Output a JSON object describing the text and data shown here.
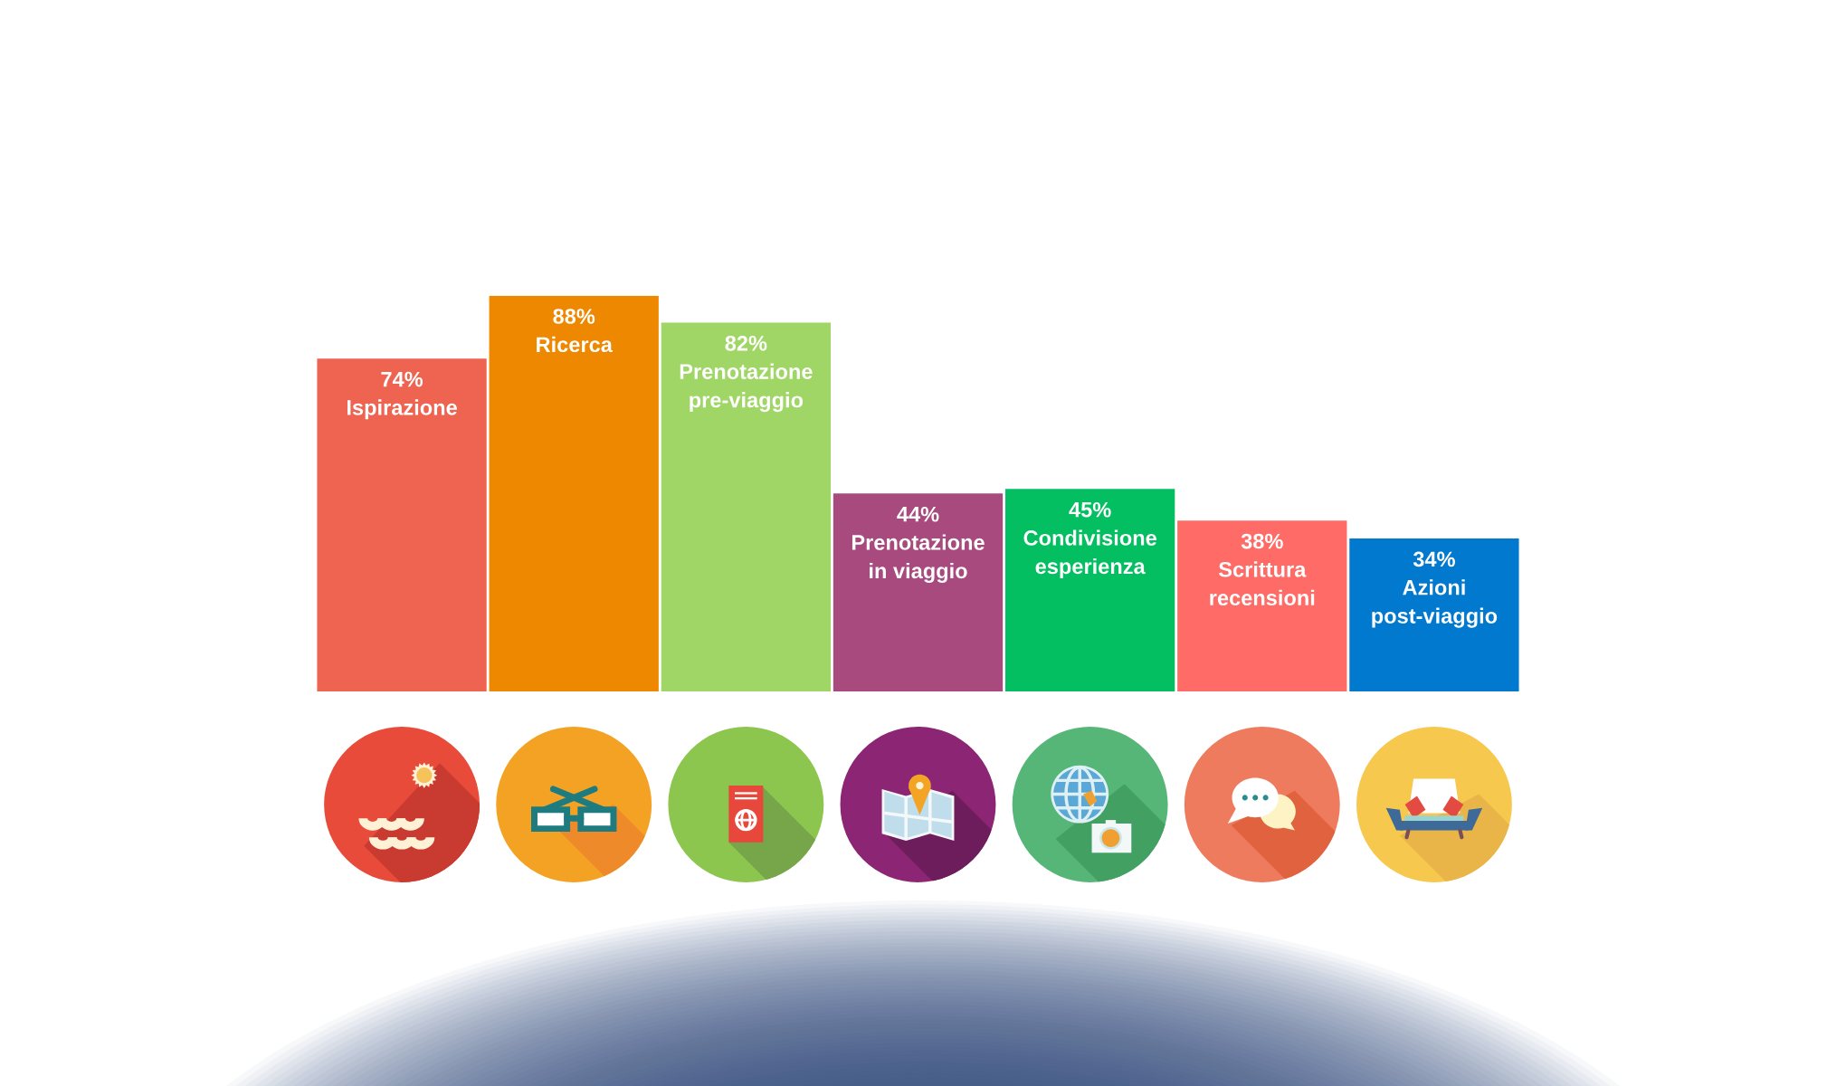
{
  "chart_data": {
    "type": "bar",
    "categories": [
      "Ispirazione",
      "Ricerca",
      "Prenotazione\npre-viaggio",
      "Prenotazione\nin viaggio",
      "Condivisione\nesperienza",
      "Scrittura\nrecensioni",
      "Azioni\npost-viaggio"
    ],
    "values": [
      74,
      88,
      82,
      44,
      45,
      38,
      34
    ],
    "colors": [
      "#ee6450",
      "#ee8800",
      "#a0d665",
      "#a84a7e",
      "#04bf61",
      "#ff6b66",
      "#0079cf"
    ],
    "value_labels": [
      "74%",
      "88%",
      "82%",
      "44%",
      "45%",
      "38%",
      "34%"
    ],
    "tick_labels": false
  }
}
